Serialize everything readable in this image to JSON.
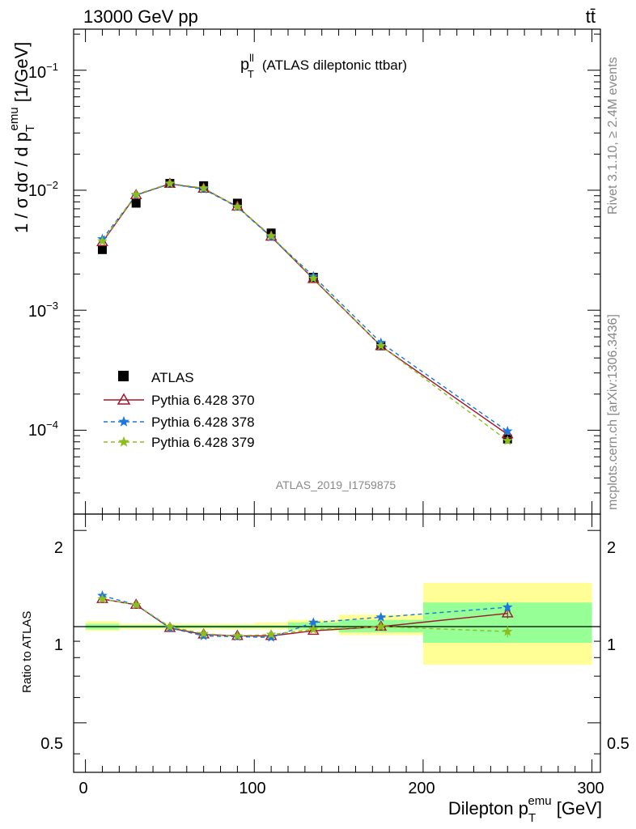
{
  "header": {
    "energy_label": "13000 GeV pp",
    "process_label": "tt̄"
  },
  "side_text": {
    "rivet": "Rivet 3.1.10, ≥ 2.4M events",
    "source": "mcplots.cern.ch [arXiv:1306.3436]"
  },
  "main_panel": {
    "title_p": "p",
    "title_sup": "ll",
    "title_sub": "T",
    "title_rest": "(ATLAS dileptonic ttbar)",
    "ylabel": "1 / σ  dσ / d p",
    "ylabel_sub": "T",
    "ylabel_sup": "emu",
    "ylabel_unit": " [1/GeV]",
    "watermark": "ATLAS_2019_I1759875",
    "ytick_labels": [
      "10",
      "10",
      "10",
      "10"
    ],
    "ytick_exps": [
      "−1",
      "−2",
      "−3",
      "−4"
    ]
  },
  "ratio_panel": {
    "ylabel": "Ratio to ATLAS",
    "ytick_labels": [
      "2",
      "1",
      "0.5"
    ]
  },
  "x_axis": {
    "label": "Dilepton p",
    "label_sub": "T",
    "label_sup": "emu",
    "label_unit": " [GeV]",
    "tick_labels": [
      "0",
      "100",
      "200",
      "300"
    ]
  },
  "legend": [
    {
      "label": "ATLAS"
    },
    {
      "label": "Pythia 6.428 370"
    },
    {
      "label": "Pythia 6.428 378"
    },
    {
      "label": "Pythia 6.428 379"
    }
  ],
  "chart_data": {
    "type": "line",
    "xlim": [
      -7,
      305
    ],
    "main_ylim": [
      2e-05,
      0.22
    ],
    "main_yscale": "log",
    "ratio_ylim": [
      0.35,
      2.25
    ],
    "ratio_yscale": "log",
    "colors": {
      "ATLAS": "#000000",
      "370": "#a0162e",
      "378": "#1e78dc",
      "379": "#8cbe1e",
      "band_outer": "#ffff96",
      "band_inner": "#96ff96"
    },
    "bins": [
      [
        0,
        20
      ],
      [
        20,
        40
      ],
      [
        40,
        60
      ],
      [
        60,
        80
      ],
      [
        80,
        100
      ],
      [
        100,
        120
      ],
      [
        120,
        150
      ],
      [
        150,
        200
      ],
      [
        200,
        300
      ]
    ],
    "x": [
      10,
      30,
      50,
      70,
      90,
      110,
      135,
      175,
      250
    ],
    "atlas": [
      0.0032,
      0.0078,
      0.0114,
      0.0109,
      0.0078,
      0.0044,
      0.00188,
      0.000505,
      8.45e-05
    ],
    "band_outer": [
      [
        0.97,
        1.04
      ],
      [
        0.98,
        1.02
      ],
      [
        0.98,
        1.02
      ],
      [
        0.98,
        1.02
      ],
      [
        0.98,
        1.02
      ],
      [
        0.98,
        1.03
      ],
      [
        0.97,
        1.05
      ],
      [
        0.94,
        1.09
      ],
      [
        0.76,
        1.37
      ]
    ],
    "band_inner": [
      [
        0.98,
        1.02
      ],
      [
        0.99,
        1.01
      ],
      [
        0.99,
        1.01
      ],
      [
        0.99,
        1.01
      ],
      [
        0.99,
        1.01
      ],
      [
        0.99,
        1.01
      ],
      [
        0.98,
        1.03
      ],
      [
        0.96,
        1.05
      ],
      [
        0.89,
        1.19
      ]
    ],
    "series": [
      {
        "name": "Pythia 6.428 370",
        "key": "370",
        "marker": "triangle",
        "dash": "",
        "values": [
          0.00369,
          0.0091,
          0.0113,
          0.0103,
          0.0073,
          0.0041,
          0.00182,
          0.000503,
          9.24e-05
        ],
        "ratio": [
          1.22,
          1.17,
          0.99,
          0.945,
          0.935,
          0.935,
          0.97,
          1.0,
          1.1
        ],
        "ratio_err": [
          0.01,
          0.01,
          0.005,
          0.005,
          0.005,
          0.005,
          0.01,
          0.015,
          0.04
        ]
      },
      {
        "name": "Pythia 6.428 378",
        "key": "378",
        "marker": "star",
        "dash": "5,4",
        "values": [
          0.00392,
          0.0091,
          0.0113,
          0.0102,
          0.00723,
          0.00407,
          0.00192,
          0.000536,
          9.8e-05
        ],
        "ratio": [
          1.25,
          1.17,
          0.99,
          0.935,
          0.93,
          0.925,
          1.03,
          1.07,
          1.15
        ],
        "ratio_err": [
          0.01,
          0.01,
          0.005,
          0.005,
          0.005,
          0.005,
          0.01,
          0.015,
          0.04
        ]
      },
      {
        "name": "Pythia 6.428 379",
        "key": "379",
        "marker": "star",
        "dash": "5,4",
        "values": [
          0.00376,
          0.0092,
          0.0114,
          0.0104,
          0.00728,
          0.00416,
          0.00184,
          0.000505,
          8.18e-05
        ],
        "ratio": [
          1.22,
          1.17,
          1.0,
          0.95,
          0.935,
          0.945,
          0.98,
          1.0,
          0.965
        ],
        "ratio_err": [
          0.01,
          0.01,
          0.005,
          0.005,
          0.005,
          0.005,
          0.01,
          0.015,
          0.04
        ]
      }
    ]
  }
}
